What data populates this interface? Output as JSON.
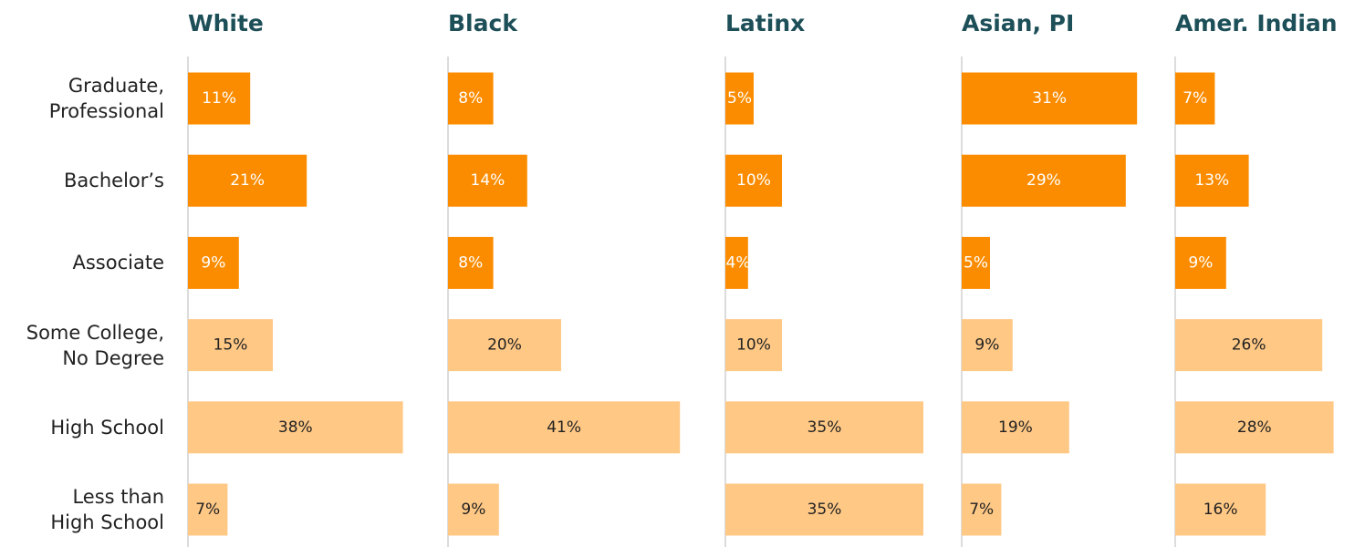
{
  "chart_data": {
    "type": "bar",
    "orientation": "horizontal",
    "categories": [
      "Graduate,\nProfessional",
      "Bachelor’s",
      "Associate",
      "Some College,\nNo Degree",
      "High School",
      "Less than\nHigh School"
    ],
    "colors": [
      "#fb8c00",
      "#fb8c00",
      "#fb8c00",
      "#ffc885",
      "#ffc885",
      "#ffc885"
    ],
    "series": [
      {
        "name": "White",
        "values": [
          11,
          21,
          9,
          15,
          38,
          7
        ],
        "value_labels": [
          "11%",
          "21%",
          "9%",
          "15%",
          "38%",
          "7%"
        ]
      },
      {
        "name": "Black",
        "values": [
          8,
          14,
          8,
          20,
          41,
          9
        ],
        "value_labels": [
          "8%",
          "14%",
          "8%",
          "20%",
          "41%",
          "9%"
        ]
      },
      {
        "name": "Latinx",
        "values": [
          5,
          10,
          4,
          10,
          35,
          35
        ],
        "value_labels": [
          "5%",
          "10%",
          "4%",
          "10%",
          "35%",
          "35%"
        ]
      },
      {
        "name": "Asian, PI",
        "values": [
          31,
          29,
          5,
          9,
          19,
          7
        ],
        "value_labels": [
          "31%",
          "29%",
          "5%",
          "9%",
          "19%",
          "7%"
        ]
      },
      {
        "name": "Amer. Indian",
        "values": [
          7,
          13,
          9,
          26,
          28,
          16
        ],
        "value_labels": [
          "7%",
          "13%",
          "9%",
          "26%",
          "28%",
          "16%"
        ]
      }
    ]
  }
}
